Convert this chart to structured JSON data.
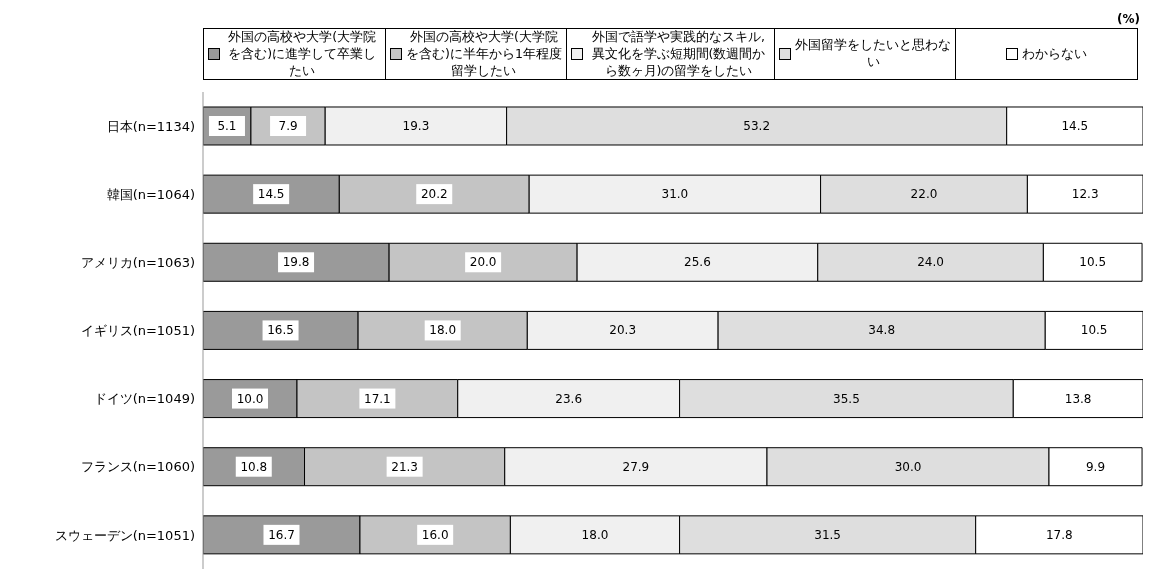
{
  "chart_data": {
    "type": "bar",
    "orientation": "horizontal",
    "stacked": true,
    "legend": "top",
    "grid": false,
    "tick_labels": "y",
    "xlim": [
      0,
      100
    ],
    "annotations": [
      "(%)"
    ],
    "categories": [
      "日本(n=1134)",
      "韓国(n=1064)",
      "アメリカ(n=1063)",
      "イギリス(n=1051)",
      "ドイツ(n=1049)",
      "フランス(n=1060)",
      "スウェーデン(n=1051)"
    ],
    "series": [
      {
        "name": "外国の高校や大学(大学院を含む)に進学して卒業したい",
        "color": "#9a9a9a",
        "values": [
          5.1,
          14.5,
          19.8,
          16.5,
          10.0,
          10.8,
          16.7
        ],
        "value_labels": [
          "5.1",
          "14.5",
          "19.8",
          "16.5",
          "10.0",
          "10.8",
          "16.7"
        ]
      },
      {
        "name": "外国の高校や大学(大学院を含む)に半年から1年程度留学したい",
        "color": "#c4c4c4",
        "values": [
          7.9,
          20.2,
          20.0,
          18.0,
          17.1,
          21.3,
          16.0
        ],
        "value_labels": [
          "7.9",
          "20.2",
          "20.0",
          "18.0",
          "17.1",
          "21.3",
          "16.0"
        ]
      },
      {
        "name": "外国で語学や実践的なスキル,異文化を学ぶ短期間(数週間から数ヶ月)の留学をしたい",
        "color": "#f0f0f0",
        "values": [
          19.3,
          31.0,
          25.6,
          20.3,
          23.6,
          27.9,
          18.0
        ],
        "value_labels": [
          "19.3",
          "31.0",
          "25.6",
          "20.3",
          "23.6",
          "27.9",
          "18.0"
        ]
      },
      {
        "name": "外国留学をしたいと思わない",
        "color": "#dedede",
        "values": [
          53.2,
          22.0,
          24.0,
          34.8,
          35.5,
          30.0,
          31.5
        ],
        "value_labels": [
          "53.2",
          "22.0",
          "24.0",
          "34.8",
          "35.5",
          "30.0",
          "31.5"
        ]
      },
      {
        "name": "わからない",
        "color": "#ffffff",
        "values": [
          14.5,
          12.3,
          10.5,
          10.5,
          13.8,
          9.9,
          17.8
        ],
        "value_labels": [
          "14.5",
          "12.3",
          "10.5",
          "10.5",
          "13.8",
          "9.9",
          "17.8"
        ]
      }
    ]
  }
}
